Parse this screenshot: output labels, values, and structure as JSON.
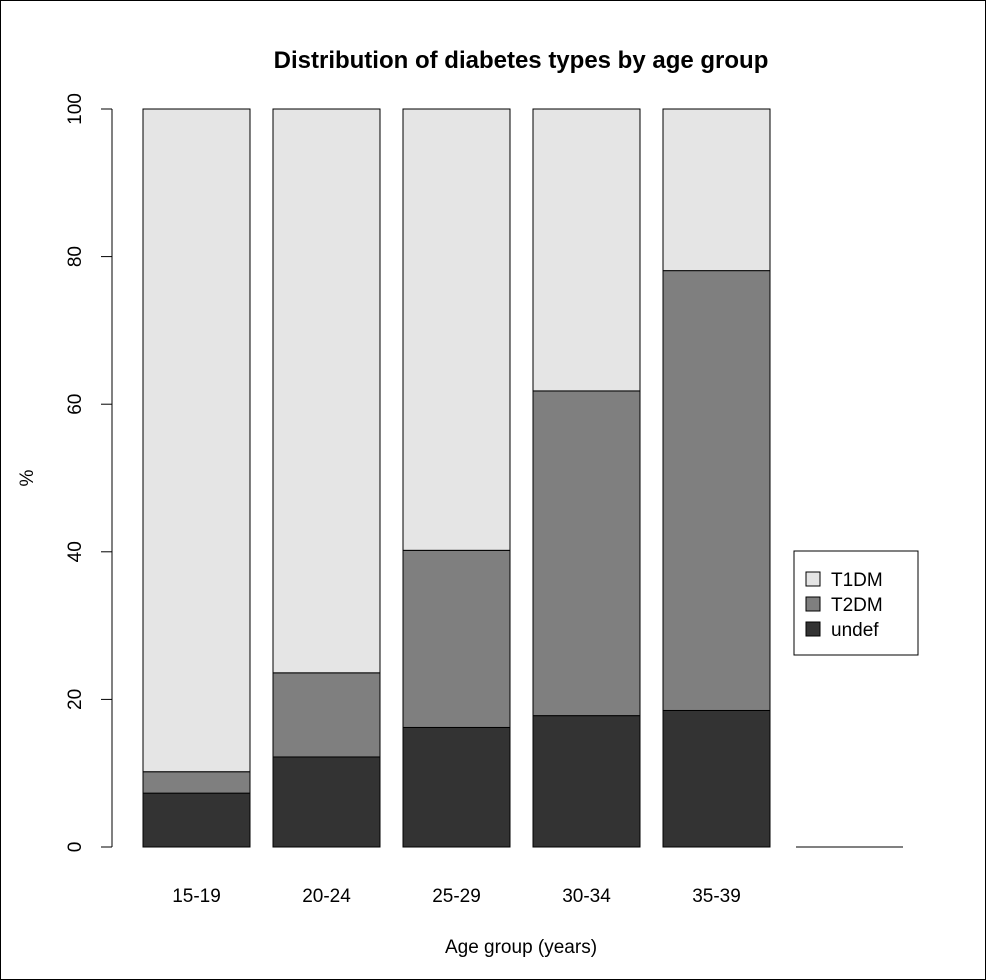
{
  "chart_data": {
    "type": "bar",
    "stacked": true,
    "title": "Distribution of diabetes types by age group",
    "xlabel": "Age group (years)",
    "ylabel": "%",
    "ylim": [
      0,
      100
    ],
    "yticks": [
      0,
      20,
      40,
      60,
      80,
      100
    ],
    "ytick_labels": [
      "0",
      "20",
      "40",
      "60",
      "80",
      "100"
    ],
    "grid": false,
    "legend_position": "right",
    "categories": [
      "15-19",
      "20-24",
      "25-29",
      "30-34",
      "35-39"
    ],
    "series": [
      {
        "name": "undef",
        "color": "#333333",
        "values": [
          7.3,
          12.2,
          16.2,
          17.8,
          18.5
        ]
      },
      {
        "name": "T2DM",
        "color": "#7f7f7f",
        "values": [
          2.9,
          11.4,
          24.0,
          44.0,
          59.6
        ]
      },
      {
        "name": "T1DM",
        "color": "#e5e5e5",
        "values": [
          89.8,
          76.4,
          59.8,
          38.2,
          21.9
        ]
      }
    ],
    "legend": [
      {
        "label": "T1DM",
        "color": "#e5e5e5"
      },
      {
        "label": "T2DM",
        "color": "#7f7f7f"
      },
      {
        "label": "undef",
        "color": "#333333"
      }
    ]
  }
}
